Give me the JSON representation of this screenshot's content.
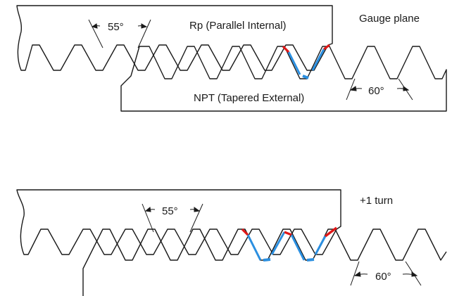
{
  "colors": {
    "outline": "#1a1a1a",
    "contact": "#2b8fe0",
    "interference": "#e01818"
  },
  "top_diagram": {
    "internal_label": "Rp (Parallel Internal)",
    "external_label": "NPT (Tapered External)",
    "plane_label": "Gauge plane",
    "angle_internal": "55°",
    "angle_external": "60°"
  },
  "bottom_diagram": {
    "turn_label": "+1 turn",
    "angle_internal": "55°",
    "angle_external": "60°"
  }
}
